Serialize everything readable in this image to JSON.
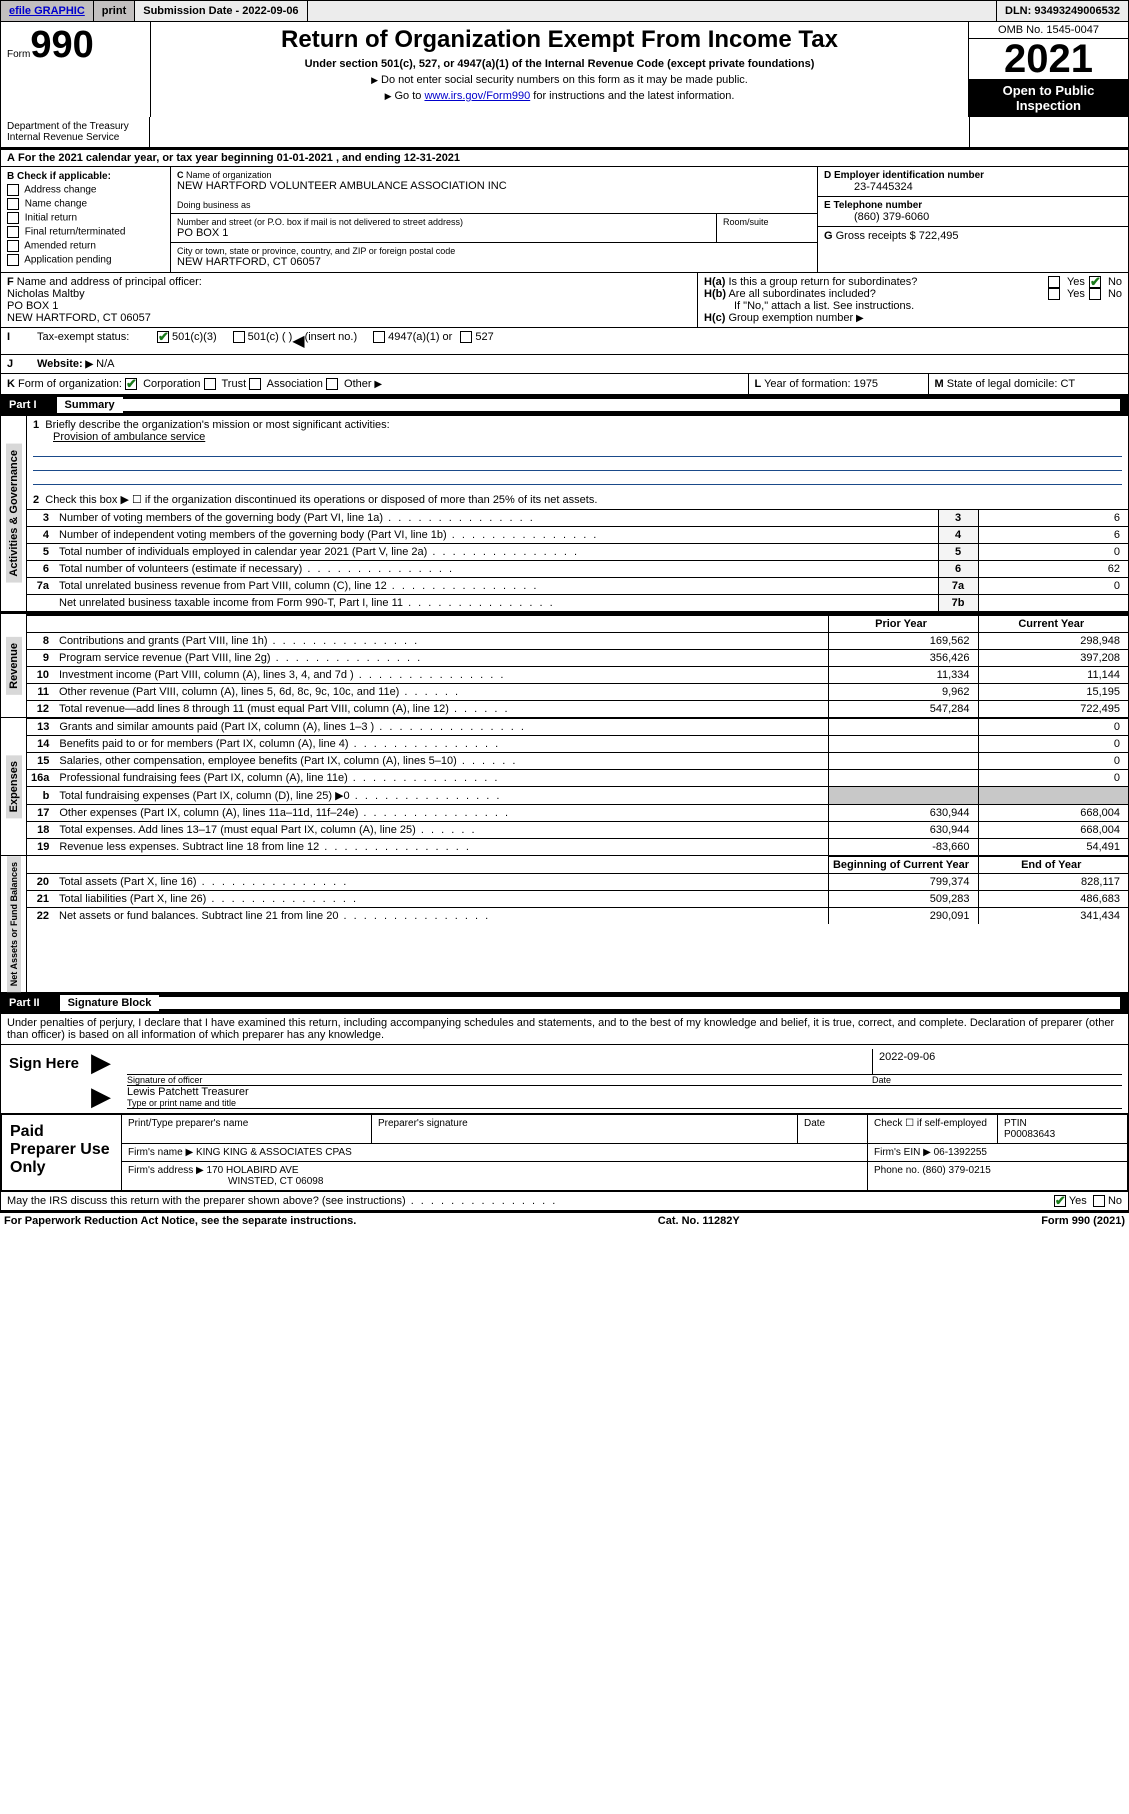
{
  "topbar": {
    "efile_link": "efile GRAPHIC",
    "print_btn": "print",
    "submission_label": "Submission Date",
    "submission_date": "2022-09-06",
    "dln_label": "DLN:",
    "dln": "93493249006532"
  },
  "header": {
    "form_prefix": "Form",
    "form_number": "990",
    "title": "Return of Organization Exempt From Income Tax",
    "subtitle": "Under section 501(c), 527, or 4947(a)(1) of the Internal Revenue Code (except private foundations)",
    "note1": "Do not enter social security numbers on this form as it may be made public.",
    "note2_prefix": "Go to ",
    "note2_link": "www.irs.gov/Form990",
    "note2_suffix": " for instructions and the latest information.",
    "dept": "Department of the Treasury\nInternal Revenue Service",
    "omb": "OMB No. 1545-0047",
    "year": "2021",
    "open_public": "Open to Public Inspection"
  },
  "sectionA": {
    "taxyear_line": "For the 2021 calendar year, or tax year beginning 01-01-2021    , and ending 12-31-2021",
    "A_prefix": "A",
    "B_label": "Check if applicable:",
    "B_opts": [
      "Address change",
      "Name change",
      "Initial return",
      "Final return/terminated",
      "Amended return",
      "Application pending"
    ],
    "C_name_label": "Name of organization",
    "C_name": "NEW HARTFORD VOLUNTEER AMBULANCE ASSOCIATION INC",
    "C_dba_label": "Doing business as",
    "C_addr_label": "Number and street (or P.O. box if mail is not delivered to street address)",
    "C_room_label": "Room/suite",
    "C_addr": "PO BOX 1",
    "C_city_label": "City or town, state or province, country, and ZIP or foreign postal code",
    "C_city": "NEW HARTFORD, CT  06057",
    "D_label": "Employer identification number",
    "D_val": "23-7445324",
    "E_label": "Telephone number",
    "E_val": "(860) 379-6060",
    "G_label": "Gross receipts $",
    "G_val": "722,495",
    "F_label": "Name and address of principal officer:",
    "F_name": "Nicholas Maltby",
    "F_addr1": "PO BOX 1",
    "F_addr2": "NEW HARTFORD, CT  06057",
    "Ha_label": "Is this a group return for subordinates?",
    "Hb_label": "Are all subordinates included?",
    "H_note": "If \"No,\" attach a list. See instructions.",
    "Hc_label": "Group exemption number",
    "I_label": "Tax-exempt status:",
    "I_501c3": "501(c)(3)",
    "I_501c": "501(c) (   )",
    "I_insert": "(insert no.)",
    "I_4947": "4947(a)(1) or",
    "I_527": "527",
    "J_label": "Website:",
    "J_val": "N/A",
    "K_label": "Form of organization:",
    "K_opts": [
      "Corporation",
      "Trust",
      "Association",
      "Other"
    ],
    "L_label": "Year of formation:",
    "L_val": "1975",
    "M_label": "State of legal domicile:",
    "M_val": "CT",
    "yes": "Yes",
    "no": "No"
  },
  "part1": {
    "header_num": "Part I",
    "header_title": "Summary",
    "tab_gov": "Activities & Governance",
    "tab_rev": "Revenue",
    "tab_exp": "Expenses",
    "tab_net": "Net Assets or Fund Balances",
    "line1_label": "Briefly describe the organization's mission or most significant activities:",
    "line1_val": "Provision of ambulance service",
    "line2": "Check this box ▶ ☐  if the organization discontinued its operations or disposed of more than 25% of its net assets.",
    "prior_year": "Prior Year",
    "current_year": "Current Year",
    "beg_year": "Beginning of Current Year",
    "end_year": "End of Year",
    "rows_top": [
      {
        "n": "3",
        "label": "Number of voting members of the governing body (Part VI, line 1a)",
        "ref": "3",
        "val": "6"
      },
      {
        "n": "4",
        "label": "Number of independent voting members of the governing body (Part VI, line 1b)",
        "ref": "4",
        "val": "6"
      },
      {
        "n": "5",
        "label": "Total number of individuals employed in calendar year 2021 (Part V, line 2a)",
        "ref": "5",
        "val": "0"
      },
      {
        "n": "6",
        "label": "Total number of volunteers (estimate if necessary)",
        "ref": "6",
        "val": "62"
      },
      {
        "n": "7a",
        "label": "Total unrelated business revenue from Part VIII, column (C), line 12",
        "ref": "7a",
        "val": "0"
      },
      {
        "n": "",
        "label": "Net unrelated business taxable income from Form 990-T, Part I, line 11",
        "ref": "7b",
        "val": ""
      }
    ],
    "rows_rev": [
      {
        "n": "8",
        "label": "Contributions and grants (Part VIII, line 1h)",
        "py": "169,562",
        "cy": "298,948"
      },
      {
        "n": "9",
        "label": "Program service revenue (Part VIII, line 2g)",
        "py": "356,426",
        "cy": "397,208"
      },
      {
        "n": "10",
        "label": "Investment income (Part VIII, column (A), lines 3, 4, and 7d )",
        "py": "11,334",
        "cy": "11,144"
      },
      {
        "n": "11",
        "label": "Other revenue (Part VIII, column (A), lines 5, 6d, 8c, 9c, 10c, and 11e)",
        "py": "9,962",
        "cy": "15,195"
      },
      {
        "n": "12",
        "label": "Total revenue—add lines 8 through 11 (must equal Part VIII, column (A), line 12)",
        "py": "547,284",
        "cy": "722,495"
      }
    ],
    "rows_exp": [
      {
        "n": "13",
        "label": "Grants and similar amounts paid (Part IX, column (A), lines 1–3 )",
        "py": "",
        "cy": "0"
      },
      {
        "n": "14",
        "label": "Benefits paid to or for members (Part IX, column (A), line 4)",
        "py": "",
        "cy": "0"
      },
      {
        "n": "15",
        "label": "Salaries, other compensation, employee benefits (Part IX, column (A), lines 5–10)",
        "py": "",
        "cy": "0"
      },
      {
        "n": "16a",
        "label": "Professional fundraising fees (Part IX, column (A), line 11e)",
        "py": "",
        "cy": "0"
      },
      {
        "n": "b",
        "label": "Total fundraising expenses (Part IX, column (D), line 25) ▶0",
        "py": "SHADE",
        "cy": "SHADE"
      },
      {
        "n": "17",
        "label": "Other expenses (Part IX, column (A), lines 11a–11d, 11f–24e)",
        "py": "630,944",
        "cy": "668,004"
      },
      {
        "n": "18",
        "label": "Total expenses. Add lines 13–17 (must equal Part IX, column (A), line 25)",
        "py": "630,944",
        "cy": "668,004"
      },
      {
        "n": "19",
        "label": "Revenue less expenses. Subtract line 18 from line 12",
        "py": "-83,660",
        "cy": "54,491"
      }
    ],
    "rows_net": [
      {
        "n": "20",
        "label": "Total assets (Part X, line 16)",
        "py": "799,374",
        "cy": "828,117"
      },
      {
        "n": "21",
        "label": "Total liabilities (Part X, line 26)",
        "py": "509,283",
        "cy": "486,683"
      },
      {
        "n": "22",
        "label": "Net assets or fund balances. Subtract line 21 from line 20",
        "py": "290,091",
        "cy": "341,434"
      }
    ]
  },
  "part2": {
    "header_num": "Part II",
    "header_title": "Signature Block",
    "perjury": "Under penalties of perjury, I declare that I have examined this return, including accompanying schedules and statements, and to the best of my knowledge and belief, it is true, correct, and complete. Declaration of preparer (other than officer) is based on all information of which preparer has any knowledge.",
    "sign_here": "Sign Here",
    "sig_officer": "Signature of officer",
    "date_label": "Date",
    "sig_date": "2022-09-06",
    "officer_name": "Lewis Patchett  Treasurer",
    "type_name": "Type or print name and title",
    "paid_prep": "Paid Preparer Use Only",
    "col_name": "Print/Type preparer's name",
    "col_sig": "Preparer's signature",
    "col_date": "Date",
    "check_self": "Check ☐ if self-employed",
    "ptin_label": "PTIN",
    "ptin": "P00083643",
    "firm_name_label": "Firm's name    ▶",
    "firm_name": "KING KING & ASSOCIATES CPAS",
    "firm_ein_label": "Firm's EIN ▶",
    "firm_ein": "06-1392255",
    "firm_addr_label": "Firm's address ▶",
    "firm_addr1": "170 HOLABIRD AVE",
    "firm_addr2": "WINSTED, CT  06098",
    "phone_label": "Phone no.",
    "phone": "(860) 379-0215",
    "discuss": "May the IRS discuss this return with the preparer shown above? (see instructions)"
  },
  "footer": {
    "left": "For Paperwork Reduction Act Notice, see the separate instructions.",
    "mid": "Cat. No. 11282Y",
    "right_prefix": "Form ",
    "right_bold": "990",
    "right_suffix": " (2021)"
  },
  "colors": {
    "link": "#0000cc",
    "topbar_btn": "#c2bfbf",
    "topbar_fill": "#ececec",
    "check_green": "#1a7a1a",
    "vtab_bg": "#d8d8d8",
    "shade": "#c8c8c8",
    "mission_line": "#1a4a8a"
  }
}
